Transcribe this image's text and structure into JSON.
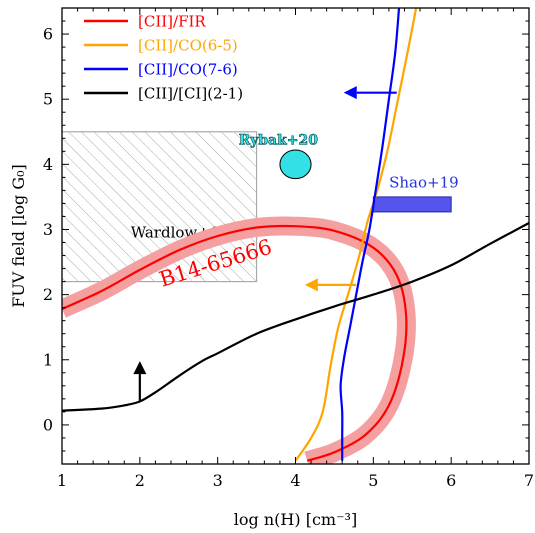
{
  "chart_data": {
    "type": "line",
    "xlabel": "log n(H) [cm⁻³]",
    "ylabel": "FUV field [log G₀]",
    "xlim": [
      1,
      7
    ],
    "ylim": [
      -0.6,
      6.4
    ],
    "xticks": [
      1,
      2,
      3,
      4,
      5,
      6,
      7
    ],
    "yticks": [
      0,
      1,
      2,
      3,
      4,
      5,
      6
    ],
    "legend_position": "top-left",
    "grid": false,
    "series": [
      {
        "name": "[CII]/FIR",
        "color": "#ff0000",
        "points": [
          [
            1.0,
            1.78
          ],
          [
            1.5,
            2.05
          ],
          [
            2.0,
            2.38
          ],
          [
            2.5,
            2.68
          ],
          [
            3.0,
            2.9
          ],
          [
            3.5,
            3.03
          ],
          [
            4.0,
            3.05
          ],
          [
            4.5,
            2.98
          ],
          [
            5.0,
            2.72
          ],
          [
            5.3,
            2.3
          ],
          [
            5.42,
            1.7
          ],
          [
            5.38,
            1.0
          ],
          [
            5.2,
            0.3
          ],
          [
            4.9,
            -0.15
          ],
          [
            4.5,
            -0.42
          ],
          [
            4.15,
            -0.55
          ]
        ],
        "band_color": "#f5a0a0"
      },
      {
        "name": "[CII]/CO(6-5)",
        "color": "#ffa500",
        "points": [
          [
            4.0,
            -0.55
          ],
          [
            4.2,
            -0.2
          ],
          [
            4.35,
            0.2
          ],
          [
            4.45,
            0.9
          ],
          [
            4.55,
            1.5
          ],
          [
            4.7,
            2.1
          ],
          [
            4.82,
            2.6
          ],
          [
            4.92,
            3.1
          ],
          [
            5.05,
            3.6
          ],
          [
            5.18,
            4.2
          ],
          [
            5.3,
            4.9
          ],
          [
            5.42,
            5.6
          ],
          [
            5.55,
            6.4
          ]
        ]
      },
      {
        "name": "[CII]/CO(7-6)",
        "color": "#0000ff",
        "points": [
          [
            4.6,
            -0.55
          ],
          [
            4.6,
            -0.2
          ],
          [
            4.6,
            0.2
          ],
          [
            4.58,
            0.6
          ],
          [
            4.62,
            1.0
          ],
          [
            4.7,
            1.5
          ],
          [
            4.78,
            2.0
          ],
          [
            4.86,
            2.5
          ],
          [
            4.95,
            3.0
          ],
          [
            5.03,
            3.6
          ],
          [
            5.12,
            4.3
          ],
          [
            5.2,
            5.0
          ],
          [
            5.28,
            5.7
          ],
          [
            5.33,
            6.4
          ]
        ]
      },
      {
        "name": "[CII]/[CI](2-1)",
        "color": "#000000",
        "points": [
          [
            1.0,
            0.22
          ],
          [
            1.5,
            0.25
          ],
          [
            1.8,
            0.3
          ],
          [
            2.0,
            0.36
          ],
          [
            2.2,
            0.5
          ],
          [
            2.5,
            0.75
          ],
          [
            2.8,
            0.98
          ],
          [
            3.0,
            1.1
          ],
          [
            3.5,
            1.4
          ],
          [
            4.0,
            1.62
          ],
          [
            4.5,
            1.82
          ],
          [
            5.0,
            2.0
          ],
          [
            5.5,
            2.2
          ],
          [
            6.0,
            2.45
          ],
          [
            6.5,
            2.78
          ],
          [
            7.0,
            3.1
          ]
        ]
      }
    ],
    "annotations": [
      {
        "text": "Wardlow+17",
        "type": "hatched_region",
        "x": [
          1.0,
          3.5
        ],
        "y": [
          2.2,
          4.5
        ],
        "label_at": [
          2.0,
          2.95
        ],
        "color": "#aaaaaa"
      },
      {
        "text": "Rybak+20",
        "type": "ellipse",
        "center": [
          4.0,
          4.0
        ],
        "radius": [
          0.2,
          0.22
        ],
        "label_at": [
          3.78,
          4.38
        ],
        "color": "#33e0e6"
      },
      {
        "text": "Shao+19",
        "type": "rect",
        "x": [
          5.0,
          6.0
        ],
        "y": [
          3.27,
          3.5
        ],
        "label_at": [
          5.65,
          3.72
        ],
        "color": "#5555ee"
      },
      {
        "text": "B14-65666",
        "type": "label",
        "at": [
          3.0,
          2.38
        ],
        "rotation": 17,
        "color": "#ff0000"
      }
    ],
    "arrows": [
      {
        "from": [
          5.3,
          5.1
        ],
        "to": [
          4.62,
          5.1
        ],
        "color": "#0000ff"
      },
      {
        "from": [
          4.78,
          2.15
        ],
        "to": [
          4.12,
          2.15
        ],
        "color": "#ffa500"
      },
      {
        "from": [
          2.0,
          0.36
        ],
        "to": [
          2.0,
          0.98
        ],
        "color": "#000000"
      }
    ]
  }
}
